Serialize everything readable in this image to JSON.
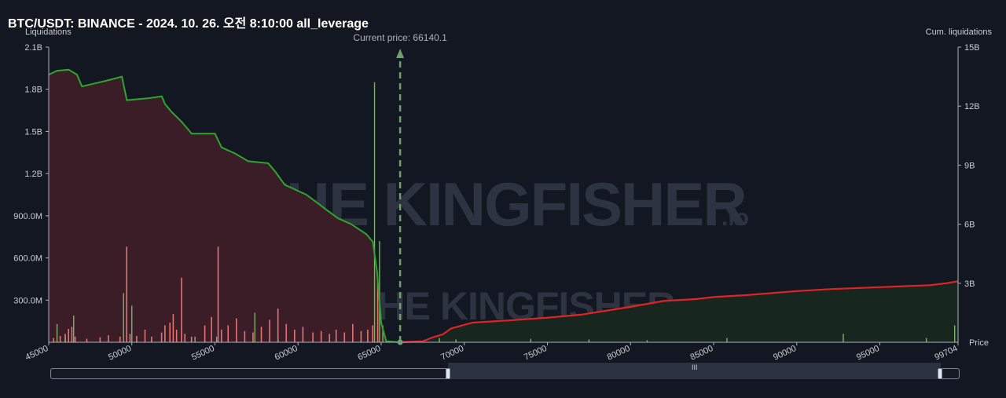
{
  "title": "BTC/USDT: BINANCE - 2024. 10. 26. 오전 8:10:00 all_leverage",
  "watermark": {
    "brand": "THE KINGFISHER",
    "suffix": ".io"
  },
  "chart_data": {
    "type": "bar",
    "left_axis": {
      "label": "Liquidations",
      "ticks": [
        "300.0M",
        "600.0M",
        "900.0M",
        "1.2B",
        "1.5B",
        "1.8B",
        "2.1B"
      ],
      "range": [
        0,
        2100000000
      ]
    },
    "right_axis": {
      "label": "Cum. liquidations",
      "ticks": [
        "3B",
        "6B",
        "9B",
        "12B",
        "15B"
      ],
      "range": [
        0,
        15000000000
      ]
    },
    "x_axis": {
      "label": "Price",
      "ticks": [
        "45000",
        "50000",
        "55000",
        "60000",
        "65000",
        "70000",
        "75000",
        "80000",
        "85000",
        "90000",
        "95000",
        "99704"
      ],
      "range": [
        45000,
        99704
      ]
    },
    "current_price": {
      "label": "Current price: 66140.1",
      "value": 66140.1
    },
    "colors": {
      "long_bars": "#e57373",
      "short_bars": "#7fb069",
      "long_cum_line": "#2ea52e",
      "short_cum_line": "#e02424",
      "long_fill": "#3a1d27",
      "short_fill": "#17261f",
      "current_price_line": "#6fa06f"
    },
    "series": [
      {
        "name": "Cum. long liquidations",
        "points": [
          [
            45000,
            13.6
          ],
          [
            45500,
            13.8
          ],
          [
            46200,
            13.85
          ],
          [
            46700,
            13.6
          ],
          [
            47000,
            13.0
          ],
          [
            48500,
            13.3
          ],
          [
            49400,
            13.5
          ],
          [
            49700,
            12.3
          ],
          [
            51000,
            12.4
          ],
          [
            51800,
            12.5
          ],
          [
            52000,
            12.1
          ],
          [
            52400,
            11.7
          ],
          [
            53000,
            11.2
          ],
          [
            53600,
            10.6
          ],
          [
            54500,
            10.6
          ],
          [
            55000,
            10.6
          ],
          [
            55400,
            9.9
          ],
          [
            56200,
            9.6
          ],
          [
            57000,
            9.2
          ],
          [
            58200,
            9.1
          ],
          [
            58600,
            8.7
          ],
          [
            59200,
            8.0
          ],
          [
            60500,
            7.5
          ],
          [
            61600,
            6.8
          ],
          [
            62400,
            6.3
          ],
          [
            63200,
            6.0
          ],
          [
            64100,
            5.5
          ],
          [
            64500,
            5.1
          ],
          [
            64750,
            3.6
          ],
          [
            65000,
            1.0
          ],
          [
            65300,
            0.05
          ],
          [
            66140,
            0
          ]
        ]
      },
      {
        "name": "Cum. short liquidations",
        "points": [
          [
            66140,
            0
          ],
          [
            67500,
            0.05
          ],
          [
            68100,
            0.25
          ],
          [
            68700,
            0.4
          ],
          [
            69200,
            0.7
          ],
          [
            70500,
            1.0
          ],
          [
            72500,
            1.1
          ],
          [
            75000,
            1.25
          ],
          [
            77000,
            1.4
          ],
          [
            80000,
            1.8
          ],
          [
            82000,
            2.1
          ],
          [
            84000,
            2.2
          ],
          [
            85000,
            2.3
          ],
          [
            87000,
            2.4
          ],
          [
            90000,
            2.6
          ],
          [
            92000,
            2.7
          ],
          [
            95000,
            2.8
          ],
          [
            98000,
            2.9
          ],
          [
            99000,
            3.0
          ],
          [
            99704,
            3.1
          ]
        ]
      },
      {
        "name": "Long liquidation bars",
        "values": [
          [
            45300,
            30
          ],
          [
            45700,
            45
          ],
          [
            46000,
            60
          ],
          [
            46200,
            95
          ],
          [
            46400,
            110
          ],
          [
            46600,
            40
          ],
          [
            47300,
            25
          ],
          [
            48100,
            35
          ],
          [
            48600,
            50
          ],
          [
            49300,
            40
          ],
          [
            49700,
            680
          ],
          [
            49900,
            60
          ],
          [
            50300,
            45
          ],
          [
            50800,
            90
          ],
          [
            51200,
            40
          ],
          [
            51800,
            70
          ],
          [
            52000,
            120
          ],
          [
            52300,
            140
          ],
          [
            52500,
            200
          ],
          [
            52700,
            90
          ],
          [
            53000,
            460
          ],
          [
            53200,
            60
          ],
          [
            53600,
            40
          ],
          [
            54400,
            120
          ],
          [
            54800,
            180
          ],
          [
            55200,
            680
          ],
          [
            55400,
            90
          ],
          [
            55800,
            120
          ],
          [
            56300,
            170
          ],
          [
            56800,
            80
          ],
          [
            57300,
            70
          ],
          [
            57800,
            110
          ],
          [
            58300,
            160
          ],
          [
            58800,
            240
          ],
          [
            59300,
            130
          ],
          [
            59800,
            90
          ],
          [
            60300,
            110
          ],
          [
            60900,
            70
          ],
          [
            61400,
            80
          ],
          [
            61900,
            60
          ],
          [
            62300,
            90
          ],
          [
            62800,
            70
          ],
          [
            63300,
            130
          ],
          [
            63800,
            80
          ],
          [
            64200,
            90
          ],
          [
            64500,
            120
          ],
          [
            64800,
            420
          ]
        ]
      },
      {
        "name": "Short liquidation bars",
        "values": [
          [
            45500,
            130
          ],
          [
            46000,
            40
          ],
          [
            46500,
            190
          ],
          [
            49500,
            350
          ],
          [
            50000,
            260
          ],
          [
            53800,
            40
          ],
          [
            55100,
            40
          ],
          [
            57400,
            210
          ],
          [
            58800,
            30
          ],
          [
            64600,
            1850
          ],
          [
            64900,
            720
          ],
          [
            65100,
            120
          ],
          [
            68500,
            30
          ],
          [
            69500,
            20
          ],
          [
            74000,
            25
          ],
          [
            77500,
            20
          ],
          [
            81000,
            15
          ],
          [
            85800,
            30
          ],
          [
            92800,
            60
          ],
          [
            97800,
            30
          ],
          [
            99500,
            120
          ]
        ]
      }
    ],
    "grid": false,
    "legend": "none"
  },
  "slider": {
    "grip": "III"
  }
}
